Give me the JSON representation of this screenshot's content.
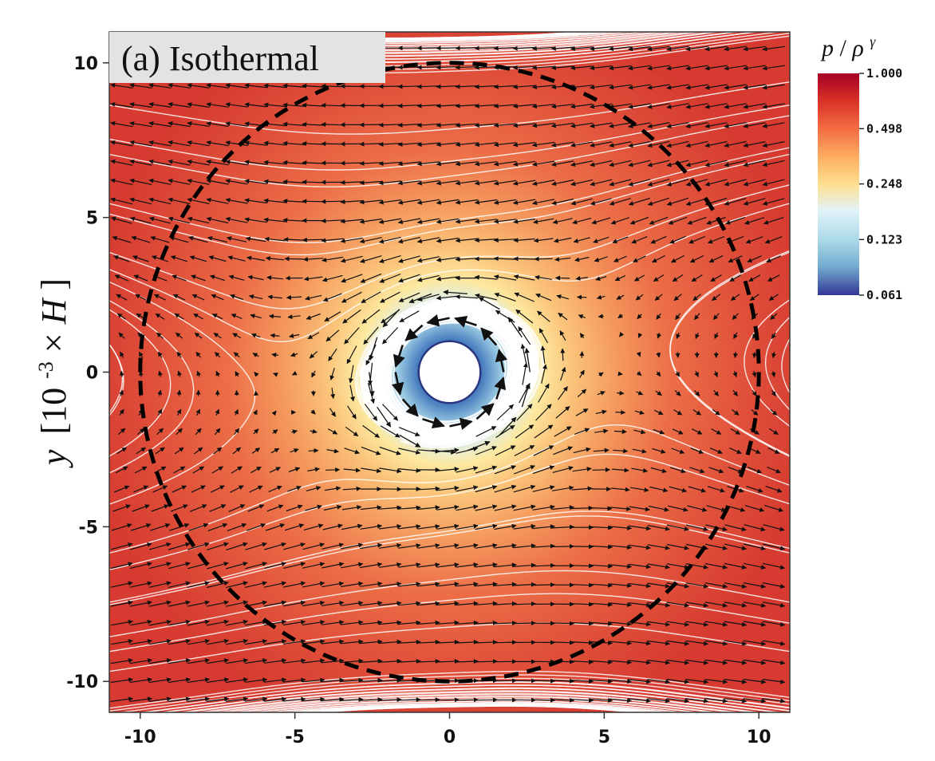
{
  "chart_data": {
    "type": "heatmap",
    "title": "(a) Isothermal",
    "xlabel": "",
    "ylabel_parts": [
      "y",
      "[10",
      "-3",
      "×",
      "H",
      "]"
    ],
    "xlim": [
      -11,
      11
    ],
    "ylim": [
      -11,
      11
    ],
    "xticks": [
      -10,
      -5,
      0,
      5,
      10
    ],
    "yticks": [
      -10,
      -5,
      0,
      5,
      10
    ],
    "xtick_labels": [
      "-10",
      "-5",
      "0",
      "5",
      "10"
    ],
    "ytick_labels": [
      "-10",
      "-5",
      "0",
      "5",
      "10"
    ],
    "grid": false,
    "colorbar": {
      "title_parts": [
        "p",
        "/",
        "ρ",
        "γ"
      ],
      "scale": "log",
      "ticks": [
        1.0,
        0.498,
        0.248,
        0.123,
        0.061
      ],
      "tick_labels": [
        "1.000",
        "0.498",
        "0.248",
        "0.123",
        "0.061"
      ],
      "colors": [
        "#b2182b",
        "#d73027",
        "#f46d43",
        "#fdae61",
        "#fee090",
        "#e0f3f8",
        "#abd9e9",
        "#74add1",
        "#4575b4",
        "#313695"
      ]
    },
    "planet_radius": 1.0,
    "dashed_circle_radius": 10.0,
    "field_min": 0.061,
    "field_max": 1.0,
    "field_core_radius": 3.5
  }
}
